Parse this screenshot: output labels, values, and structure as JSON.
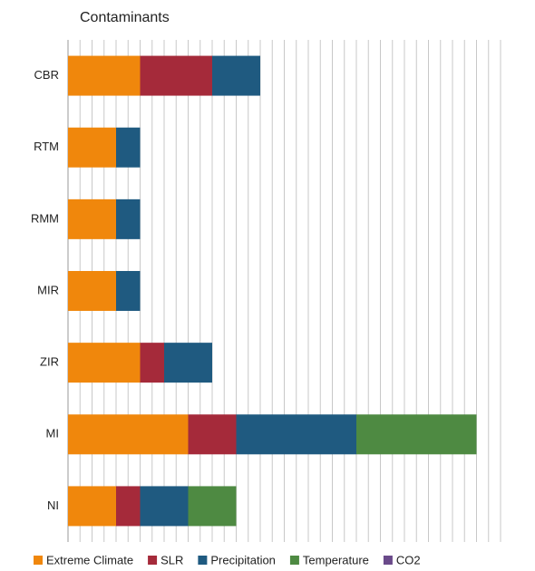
{
  "chart_data": {
    "type": "stacked-barh",
    "title": "Contaminants",
    "categories": [
      "CBR",
      "RTM",
      "RMM",
      "MIR",
      "ZIR",
      "MI",
      "NI"
    ],
    "series": [
      {
        "name": "Extreme Climate",
        "color": "#f0870c",
        "values": [
          3,
          2,
          2,
          2,
          3,
          5,
          2
        ]
      },
      {
        "name": "SLR",
        "color": "#a52a3a",
        "values": [
          3,
          0,
          0,
          0,
          1,
          2,
          1
        ]
      },
      {
        "name": "Precipitation",
        "color": "#1f5a80",
        "values": [
          2,
          1,
          1,
          1,
          2,
          5,
          2
        ]
      },
      {
        "name": "Temperature",
        "color": "#4e8a42",
        "values": [
          0,
          0,
          0,
          0,
          0,
          5,
          2
        ]
      },
      {
        "name": "CO2",
        "color": "#6a4a8a",
        "values": [
          0,
          0,
          0,
          0,
          0,
          0,
          0
        ]
      }
    ],
    "xlim": [
      0,
      18
    ],
    "grid": true,
    "legend": "bottom"
  }
}
